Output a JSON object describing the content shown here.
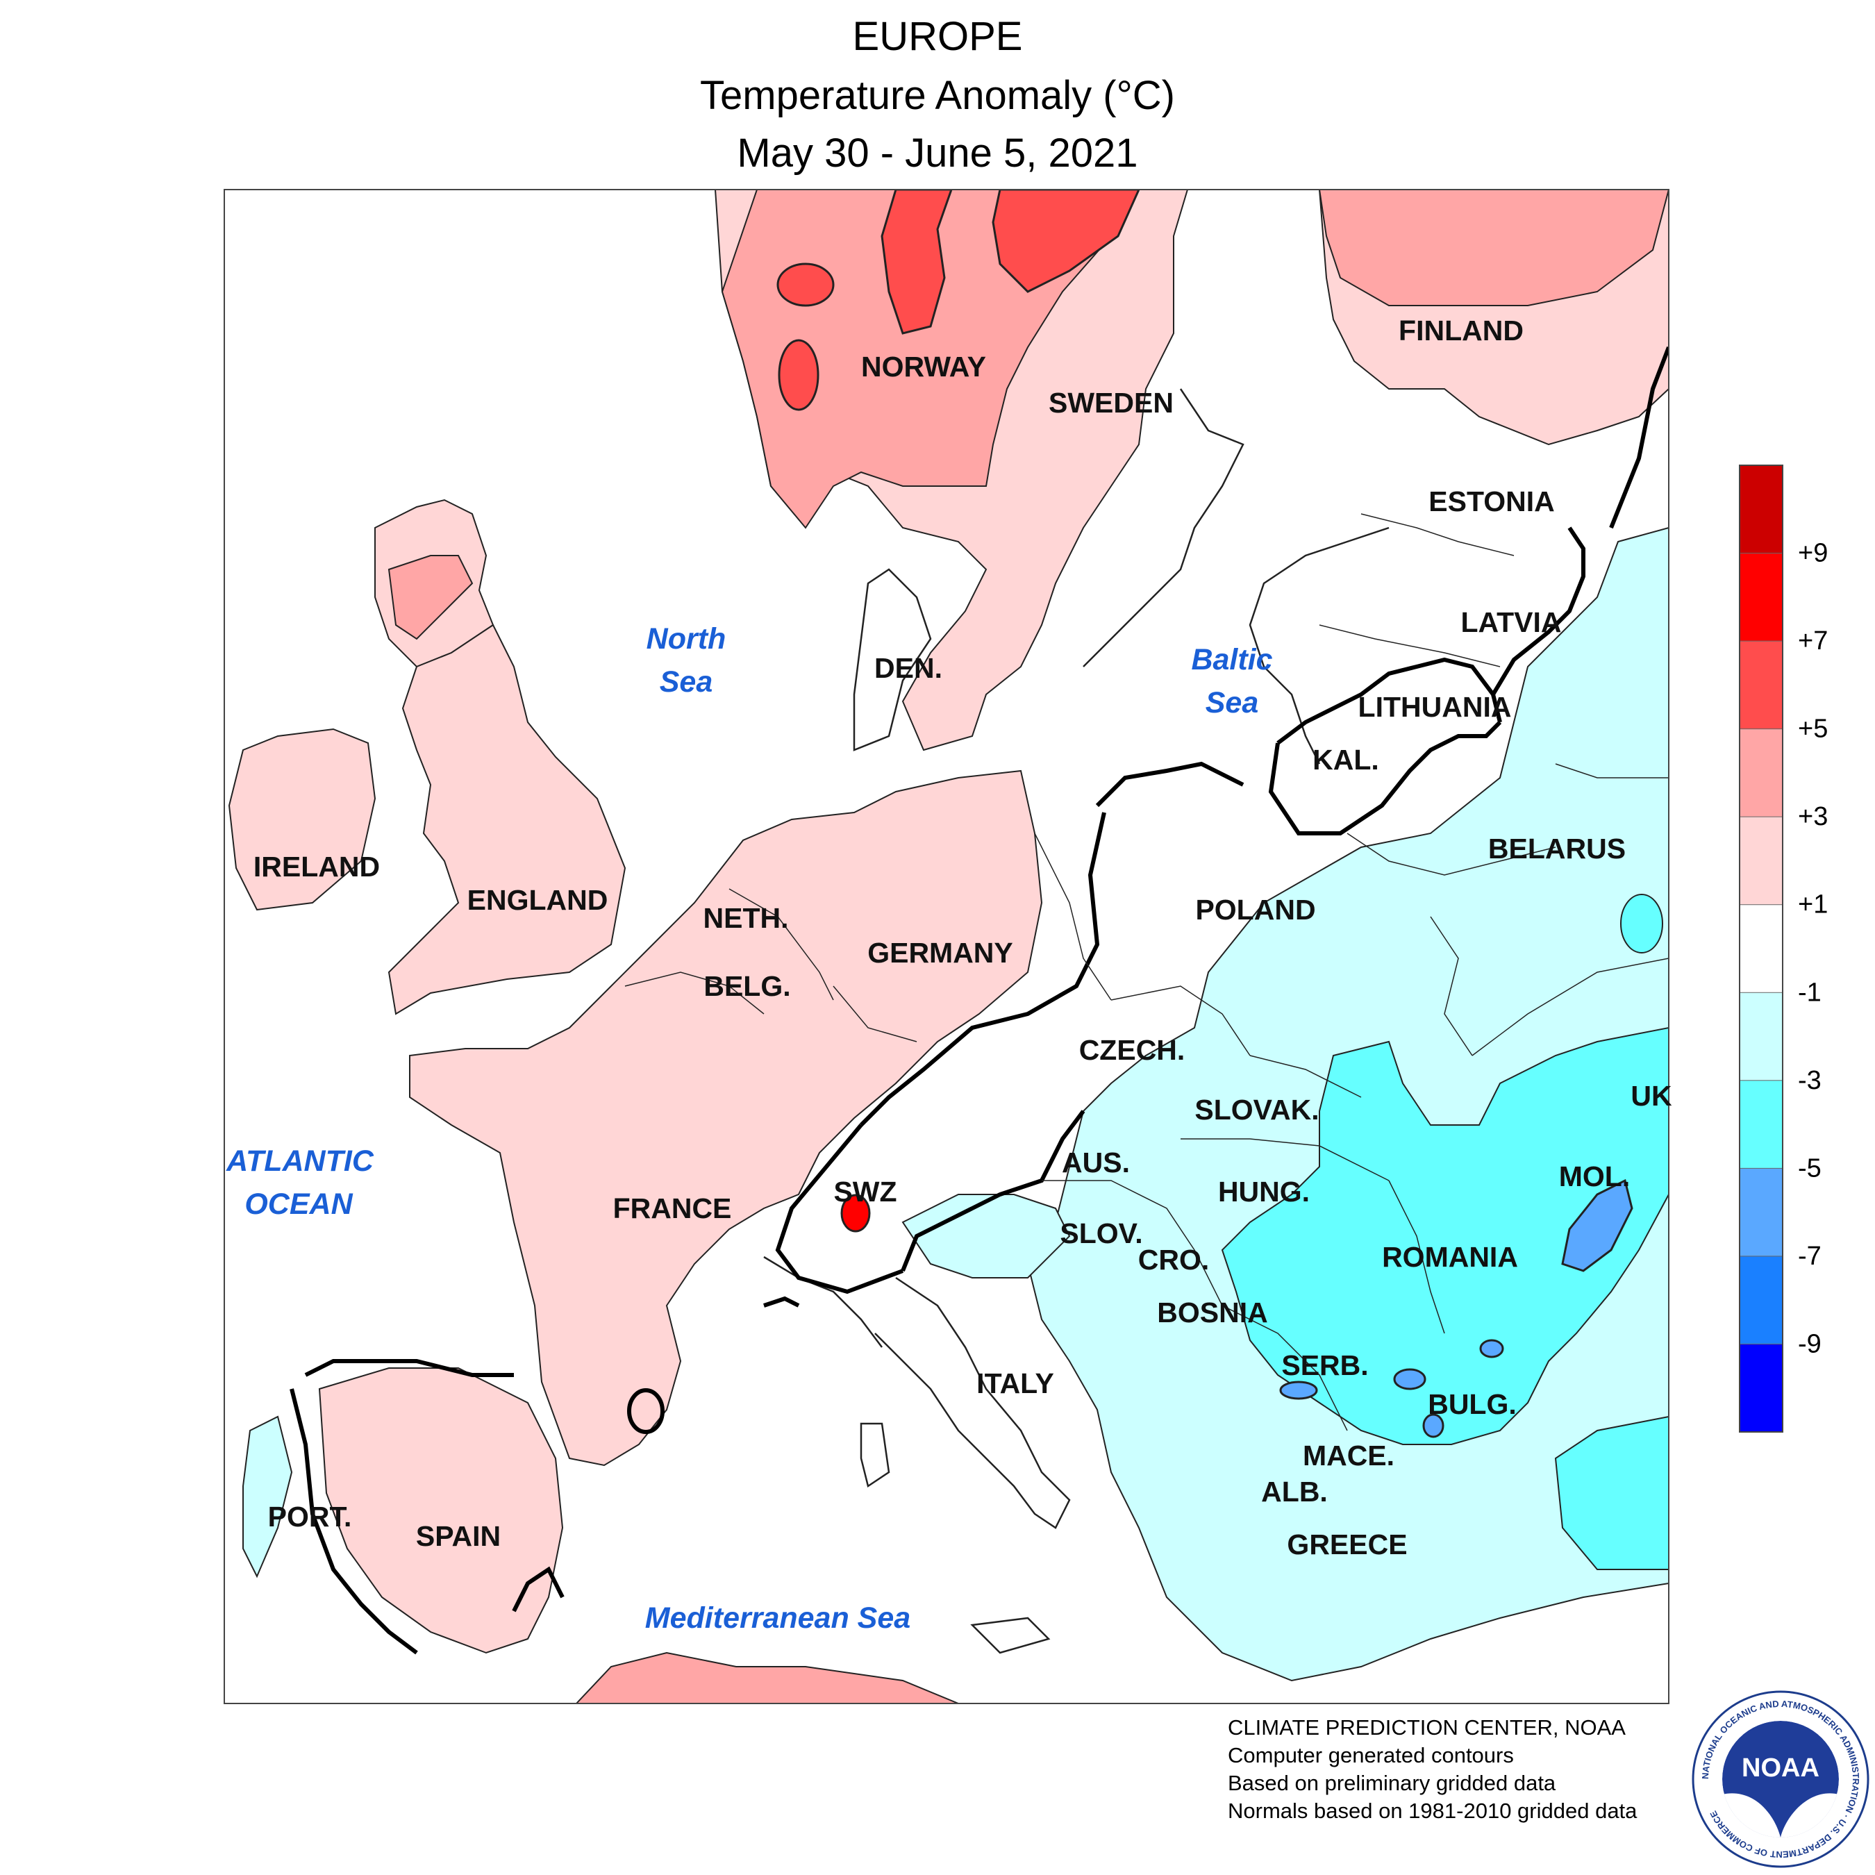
{
  "title": {
    "region": "EUROPE",
    "variable": "Temperature Anomaly (°C)",
    "period": "May 30 - June 5, 2021"
  },
  "map_labels": {
    "countries": [
      "NORWAY",
      "SWEDEN",
      "FINLAND",
      "ESTONIA",
      "LATVIA",
      "LITHUANIA",
      "KAL.",
      "BELARUS",
      "DEN.",
      "IRELAND",
      "ENGLAND",
      "NETH.",
      "BELG.",
      "GERMANY",
      "POLAND",
      "CZECH.",
      "SLOVAK.",
      "UK",
      "MOL.",
      "AUS.",
      "HUNG.",
      "ROMANIA",
      "SWZ",
      "SLOV.",
      "CRO.",
      "BOSNIA",
      "SERB.",
      "BULG.",
      "FRANCE",
      "ITALY",
      "MACE.",
      "ALB.",
      "GREECE",
      "PORT.",
      "SPAIN"
    ],
    "seas": [
      "North",
      "Sea",
      "Baltic",
      "Sea",
      "ATLANTIC",
      "OCEAN",
      "Mediterranean Sea"
    ]
  },
  "legend": {
    "tick_labels": [
      "+9",
      "+7",
      "+5",
      "+3",
      "+1",
      "-1",
      "-3",
      "-5",
      "-7",
      "-9"
    ],
    "colors": [
      "#cc0000",
      "#ff0000",
      "#ff4d4d",
      "#ffa6a6",
      "#ffd6d6",
      "#ffffff",
      "#ccffff",
      "#66ffff",
      "#5aa8ff",
      "#1a80ff",
      "#0000ff"
    ]
  },
  "credits": [
    "CLIMATE PREDICTION CENTER, NOAA",
    "Computer generated contours",
    "Based on preliminary gridded data",
    "Normals based on 1981-2010 gridded data"
  ],
  "logo": {
    "text": "NOAA",
    "ring_text": "NATIONAL OCEANIC AND ATMOSPHERIC ADMINISTRATION · U.S. DEPARTMENT OF COMMERCE"
  }
}
